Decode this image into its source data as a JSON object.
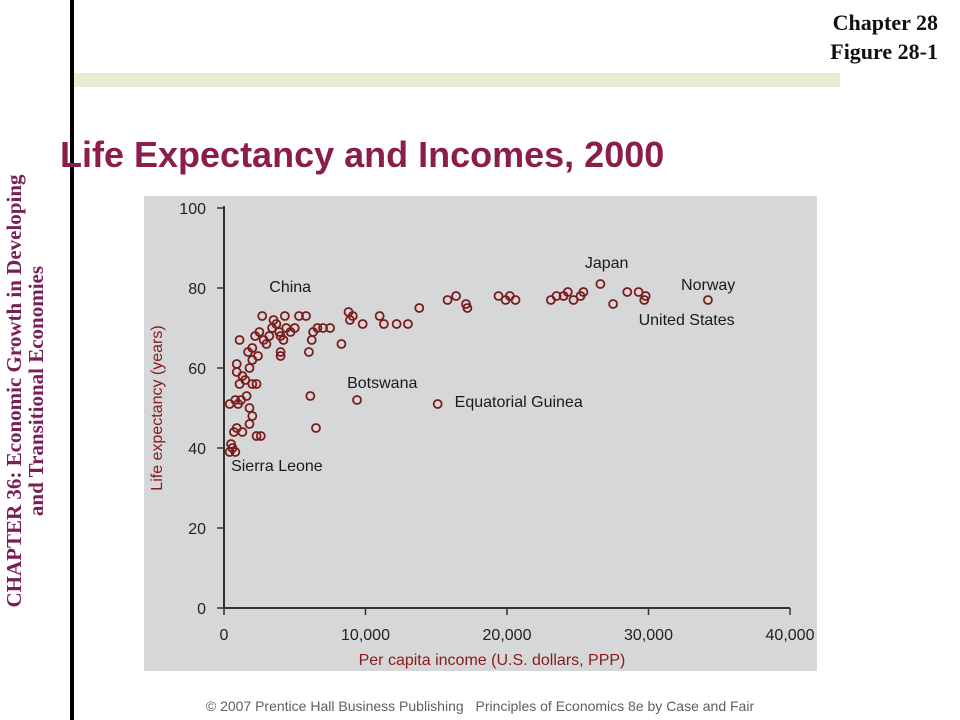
{
  "header": {
    "chapter": "Chapter 28",
    "figure": "Figure 28-1",
    "title": "Life Expectancy and Incomes, 2000"
  },
  "sidebar": {
    "line1": "CHAPTER 36:  Economic Growth in Developing",
    "line2": "and Transitional Economies"
  },
  "footer": {
    "copyright": "© 2007 Prentice Hall Business Publishing",
    "book": "Principles of Economics 8e by Case and Fair"
  },
  "colors": {
    "title": "#8b1d4b",
    "sidebar_text": "#7a1f55",
    "axis_label": "#8b1a1a",
    "marker": "#7b1b1b",
    "panel": "#d6d7d9",
    "band": "#ecebd3"
  },
  "chart_data": {
    "type": "scatter",
    "title": "",
    "xlabel": "Per capita income (U.S. dollars, PPP)",
    "ylabel": "Life expectancy (years)",
    "xlim": [
      0,
      40000
    ],
    "ylim": [
      0,
      100
    ],
    "xticks": [
      0,
      10000,
      20000,
      30000,
      40000
    ],
    "xtick_labels": [
      "0",
      "10,000",
      "20,000",
      "30,000",
      "40,000"
    ],
    "yticks": [
      0,
      20,
      40,
      60,
      80,
      100
    ],
    "ytick_labels": [
      "0",
      "20",
      "40",
      "60",
      "80",
      "100"
    ],
    "grid": false,
    "legend": "none",
    "annotations": [
      {
        "text": "China",
        "x": 3200,
        "y": 79
      },
      {
        "text": "Japan",
        "x": 25500,
        "y": 85
      },
      {
        "text": "Norway",
        "x": 32300,
        "y": 79.5
      },
      {
        "text": "United States",
        "x": 29300,
        "y": 70.8
      },
      {
        "text": "Botswana",
        "x": 8700,
        "y": 55
      },
      {
        "text": "Equatorial Guinea",
        "x": 16300,
        "y": 50.3
      },
      {
        "text": "Sierra Leone",
        "x": 500,
        "y": 34.3
      }
    ],
    "points": [
      {
        "x": 400,
        "y": 39
      },
      {
        "x": 500,
        "y": 41
      },
      {
        "x": 600,
        "y": 40
      },
      {
        "x": 800,
        "y": 39
      },
      {
        "x": 700,
        "y": 44
      },
      {
        "x": 900,
        "y": 45
      },
      {
        "x": 1300,
        "y": 44
      },
      {
        "x": 1800,
        "y": 46
      },
      {
        "x": 2000,
        "y": 48
      },
      {
        "x": 2300,
        "y": 43
      },
      {
        "x": 2600,
        "y": 43
      },
      {
        "x": 400,
        "y": 51
      },
      {
        "x": 800,
        "y": 52
      },
      {
        "x": 1000,
        "y": 51
      },
      {
        "x": 1200,
        "y": 52
      },
      {
        "x": 1600,
        "y": 53
      },
      {
        "x": 1800,
        "y": 50
      },
      {
        "x": 1100,
        "y": 56
      },
      {
        "x": 1500,
        "y": 57
      },
      {
        "x": 2000,
        "y": 56
      },
      {
        "x": 2300,
        "y": 56
      },
      {
        "x": 900,
        "y": 59
      },
      {
        "x": 1300,
        "y": 58
      },
      {
        "x": 1800,
        "y": 60
      },
      {
        "x": 900,
        "y": 61
      },
      {
        "x": 2000,
        "y": 62
      },
      {
        "x": 2400,
        "y": 63
      },
      {
        "x": 1100,
        "y": 67
      },
      {
        "x": 1700,
        "y": 64
      },
      {
        "x": 2000,
        "y": 65
      },
      {
        "x": 2200,
        "y": 68
      },
      {
        "x": 2500,
        "y": 69
      },
      {
        "x": 2800,
        "y": 67
      },
      {
        "x": 3000,
        "y": 66
      },
      {
        "x": 3200,
        "y": 68
      },
      {
        "x": 3400,
        "y": 70
      },
      {
        "x": 3500,
        "y": 72
      },
      {
        "x": 3700,
        "y": 71
      },
      {
        "x": 3900,
        "y": 69
      },
      {
        "x": 4000,
        "y": 68
      },
      {
        "x": 4200,
        "y": 67
      },
      {
        "x": 4400,
        "y": 70
      },
      {
        "x": 4700,
        "y": 69
      },
      {
        "x": 5000,
        "y": 70
      },
      {
        "x": 2700,
        "y": 73
      },
      {
        "x": 4300,
        "y": 73
      },
      {
        "x": 5300,
        "y": 73
      },
      {
        "x": 5800,
        "y": 73
      },
      {
        "x": 4000,
        "y": 64
      },
      {
        "x": 4000,
        "y": 63
      },
      {
        "x": 6000,
        "y": 64
      },
      {
        "x": 6200,
        "y": 67
      },
      {
        "x": 6300,
        "y": 69
      },
      {
        "x": 6600,
        "y": 70
      },
      {
        "x": 7000,
        "y": 70
      },
      {
        "x": 7500,
        "y": 70
      },
      {
        "x": 8300,
        "y": 66
      },
      {
        "x": 8800,
        "y": 74
      },
      {
        "x": 8900,
        "y": 72
      },
      {
        "x": 9100,
        "y": 73
      },
      {
        "x": 9800,
        "y": 71
      },
      {
        "x": 11000,
        "y": 73
      },
      {
        "x": 11300,
        "y": 71
      },
      {
        "x": 12200,
        "y": 71
      },
      {
        "x": 13000,
        "y": 71
      },
      {
        "x": 13800,
        "y": 75
      },
      {
        "x": 15800,
        "y": 77
      },
      {
        "x": 16400,
        "y": 78
      },
      {
        "x": 17100,
        "y": 76
      },
      {
        "x": 17200,
        "y": 75
      },
      {
        "x": 19400,
        "y": 78
      },
      {
        "x": 19900,
        "y": 77
      },
      {
        "x": 20200,
        "y": 78
      },
      {
        "x": 20600,
        "y": 77
      },
      {
        "x": 23100,
        "y": 77
      },
      {
        "x": 23500,
        "y": 78
      },
      {
        "x": 24000,
        "y": 78
      },
      {
        "x": 24300,
        "y": 79
      },
      {
        "x": 24700,
        "y": 77
      },
      {
        "x": 25200,
        "y": 78
      },
      {
        "x": 25400,
        "y": 79
      },
      {
        "x": 26600,
        "y": 81
      },
      {
        "x": 27500,
        "y": 76
      },
      {
        "x": 28500,
        "y": 79
      },
      {
        "x": 29300,
        "y": 79
      },
      {
        "x": 29800,
        "y": 78
      },
      {
        "x": 29700,
        "y": 77
      },
      {
        "x": 34200,
        "y": 77
      },
      {
        "x": 6100,
        "y": 53
      },
      {
        "x": 6500,
        "y": 45
      },
      {
        "x": 9400,
        "y": 52
      },
      {
        "x": 15100,
        "y": 51
      }
    ]
  }
}
